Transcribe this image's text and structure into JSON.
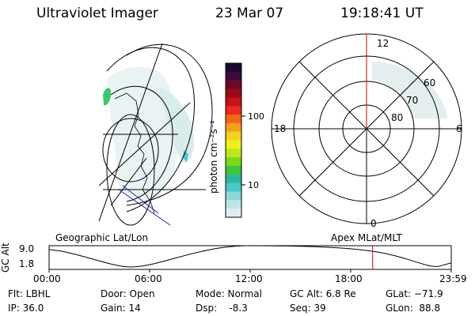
{
  "header": {
    "instrument": "Ultraviolet Imager",
    "date": "23 Mar 07",
    "time": "19:18:41 UT"
  },
  "colorbar": {
    "unit_label": "photon cm⁻²s⁻¹",
    "ticks": [
      "100",
      "10"
    ],
    "colors": [
      "#1a0a2e",
      "#3d0a3d",
      "#6a0a2a",
      "#9a0a1a",
      "#c8101a",
      "#e82a1a",
      "#f2661a",
      "#f5a01a",
      "#f3d21a",
      "#eef01a",
      "#bde81a",
      "#7ad81a",
      "#3ac83a",
      "#2ab89a",
      "#4ac8c8",
      "#8ad8d8",
      "#bfe4e4",
      "#dfeeee"
    ]
  },
  "polar_plot": {
    "clock_labels": {
      "top": "12",
      "left": "18",
      "right": "6",
      "bottom": "0"
    },
    "lat_labels": [
      "60",
      "70",
      "80"
    ]
  },
  "panel_labels": {
    "left": "Geographic Lat/Lon",
    "right": "Apex MLat/MLT"
  },
  "altitude_plot": {
    "axis_label": "GC Alt",
    "y_ticks": [
      "9.0",
      "1.8"
    ],
    "x_ticks": [
      "00:00",
      "06:00",
      "12:00",
      "18:00",
      "23:59"
    ],
    "marker_time_fraction": 0.8045
  },
  "info": {
    "flt": "Flt: LBHL",
    "ip": "IP: 36.0",
    "door": "Door: Open",
    "gain": "Gain: 14",
    "mode": "Mode: Normal",
    "dsp": "Dsp:    -8.3",
    "gcalt": "GC Alt: 6.8 Re",
    "seq": "Seq: 39",
    "glat": "GLat: −71.9",
    "glon": "GLon:  88.8"
  }
}
